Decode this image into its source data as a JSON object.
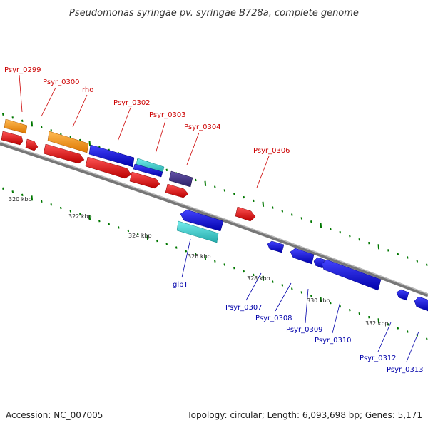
{
  "title": "Pseudomonas syringae pv. syringae B728a, complete genome",
  "footer": {
    "accession": "Accession: NC_007005",
    "summary": "Topology: circular; Length: 6,093,698 bp; Genes: 5,171"
  },
  "scale_labels": [
    "320 kbp",
    "322 kbp",
    "324 kbp",
    "326 kbp",
    "328 kbp",
    "330 kbp",
    "332 kbp"
  ],
  "gene_labels_top": [
    "Psyr_0299",
    "Psyr_0300",
    "rho",
    "Psyr_0302",
    "Psyr_0303",
    "Psyr_0304",
    "Psyr_0306"
  ],
  "gene_labels_bottom": [
    "glpT",
    "Psyr_0307",
    "Psyr_0308",
    "Psyr_0309",
    "Psyr_0310",
    "Psyr_0312",
    "Psyr_0313"
  ],
  "colors": {
    "orange": "#ff9900",
    "red": "#ee0000",
    "blue": "#0000ee",
    "cyan": "#33cccc",
    "slate": "#443388",
    "green_tick": "#007700",
    "backbone": "#888888"
  }
}
